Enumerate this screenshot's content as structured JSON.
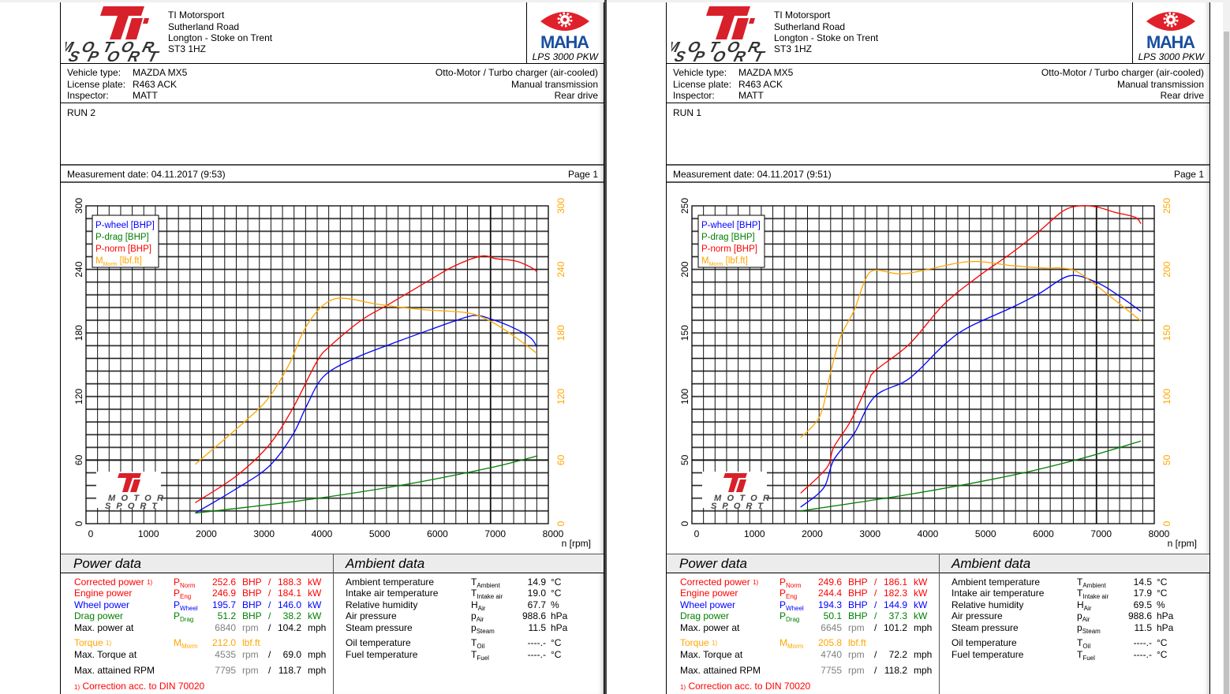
{
  "pages": [
    {
      "company": {
        "name": "TI Motorsport",
        "street": "Sutherland Road",
        "town": "Longton - Stoke on Trent",
        "postcode": "ST3 1HZ",
        "logo_text_1": "MOTOR",
        "logo_text_2": "SPORT"
      },
      "maha": {
        "logo_text": "MAHA",
        "model": "LPS 3000 PKW"
      },
      "vehicle": {
        "rows": [
          {
            "label": "Vehicle type:",
            "value": "MAZDA MX5",
            "right": "Otto-Motor / Turbo charger (air-cooled)"
          },
          {
            "label": "License plate:",
            "value": "R463 ACK",
            "right": "Manual transmission"
          },
          {
            "label": "Inspector:",
            "value": "MATT",
            "right": "Rear drive"
          }
        ]
      },
      "comment": "RUN 2",
      "measurement": "Measurement date: 04.11.2017 (9:53)",
      "page_label": "Page 1",
      "power": {
        "title": "Power data",
        "rows": [
          {
            "label": "Corrected power",
            "note": "1)",
            "sym": "P",
            "sub": "Norm",
            "v1": "252.6",
            "u1": "BHP",
            "sep": "/",
            "v2": "188.3",
            "u2": "kW",
            "cls": "red"
          },
          {
            "label": "Engine power",
            "sym": "P",
            "sub": "Eng",
            "v1": "246.9",
            "u1": "BHP",
            "sep": "/",
            "v2": "184.1",
            "u2": "kW",
            "cls": "red"
          },
          {
            "label": "Wheel power",
            "sym": "P",
            "sub": "Wheel",
            "v1": "195.7",
            "u1": "BHP",
            "sep": "/",
            "v2": "146.0",
            "u2": "kW",
            "cls": "blue"
          },
          {
            "label": "Drag power",
            "sym": "P",
            "sub": "Drag",
            "v1": "51.2",
            "u1": "BHP",
            "sep": "/",
            "v2": "38.2",
            "u2": "kW",
            "cls": "green"
          },
          {
            "label": "Max. power at",
            "v1": "6840",
            "u1": "rpm",
            "sep": "/",
            "v2": "104.2",
            "u2": "mph",
            "cls": "rpm"
          },
          {
            "label": "Torque",
            "note": "1)",
            "sym": "M",
            "sub": "Morm",
            "v1": "212.0",
            "u1": "lbf.ft",
            "cls": "orange"
          },
          {
            "label": "Max. Torque at",
            "v1": "4535",
            "u1": "rpm",
            "sep": "/",
            "v2": "69.0",
            "u2": "mph",
            "cls": "rpm"
          },
          {
            "label": "Max. attained RPM",
            "v1": "7795",
            "u1": "rpm",
            "sep": "/",
            "v2": "118.7",
            "u2": "mph",
            "cls": "rpm"
          }
        ],
        "footnote_mark": "1)",
        "footnote": "Correction acc. to DIN 70020"
      },
      "ambient": {
        "title": "Ambient data",
        "rows": [
          {
            "label": "Ambient temperature",
            "sym": "T",
            "sub": "Ambient",
            "value": "14.9",
            "unit": "°C"
          },
          {
            "label": "Intake air temperature",
            "sym": "T",
            "sub": "Intake air",
            "value": "19.0",
            "unit": "°C"
          },
          {
            "label": "Relative humidity",
            "sym": "H",
            "sub": "Air",
            "value": "67.7",
            "unit": "%"
          },
          {
            "label": "Air pressure",
            "sym": "p",
            "sub": "Air",
            "value": "988.6",
            "unit": "hPa"
          },
          {
            "label": "Steam pressure",
            "sym": "p",
            "sub": "Steam",
            "value": "11.5",
            "unit": "hPa"
          },
          {
            "label": "Oil temperature",
            "sym": "T",
            "sub": "Oil",
            "value": "----.-",
            "unit": "°C"
          },
          {
            "label": "Fuel temperature",
            "sym": "T",
            "sub": "Fuel",
            "value": "----.-",
            "unit": "°C"
          }
        ]
      }
    },
    {
      "company": {
        "name": "TI Motorsport",
        "street": "Sutherland Road",
        "town": "Longton - Stoke on Trent",
        "postcode": "ST3 1HZ",
        "logo_text_1": "MOTOR",
        "logo_text_2": "SPORT"
      },
      "maha": {
        "logo_text": "MAHA",
        "model": "LPS 3000 PKW"
      },
      "vehicle": {
        "rows": [
          {
            "label": "Vehicle type:",
            "value": "MAZDA MX5",
            "right": "Otto-Motor / Turbo charger (air-cooled)"
          },
          {
            "label": "License plate:",
            "value": "R463 ACK",
            "right": "Manual transmission"
          },
          {
            "label": "Inspector:",
            "value": "MATT",
            "right": "Rear drive"
          }
        ]
      },
      "comment": "RUN 1",
      "measurement": "Measurement date: 04.11.2017 (9:51)",
      "page_label": "Page 1",
      "power": {
        "title": "Power data",
        "rows": [
          {
            "label": "Corrected power",
            "note": "1)",
            "sym": "P",
            "sub": "Norm",
            "v1": "249.6",
            "u1": "BHP",
            "sep": "/",
            "v2": "186.1",
            "u2": "kW",
            "cls": "red"
          },
          {
            "label": "Engine power",
            "sym": "P",
            "sub": "Eng",
            "v1": "244.4",
            "u1": "BHP",
            "sep": "/",
            "v2": "182.3",
            "u2": "kW",
            "cls": "red"
          },
          {
            "label": "Wheel power",
            "sym": "P",
            "sub": "Wheel",
            "v1": "194.3",
            "u1": "BHP",
            "sep": "/",
            "v2": "144.9",
            "u2": "kW",
            "cls": "blue"
          },
          {
            "label": "Drag power",
            "sym": "P",
            "sub": "Drag",
            "v1": "50.1",
            "u1": "BHP",
            "sep": "/",
            "v2": "37.3",
            "u2": "kW",
            "cls": "green"
          },
          {
            "label": "Max. power at",
            "v1": "6645",
            "u1": "rpm",
            "sep": "/",
            "v2": "101.2",
            "u2": "mph",
            "cls": "rpm"
          },
          {
            "label": "Torque",
            "note": "1)",
            "sym": "M",
            "sub": "Morm",
            "v1": "205.8",
            "u1": "lbf.ft",
            "cls": "orange"
          },
          {
            "label": "Max. Torque at",
            "v1": "4740",
            "u1": "rpm",
            "sep": "/",
            "v2": "72.2",
            "u2": "mph",
            "cls": "rpm"
          },
          {
            "label": "Max. attained RPM",
            "v1": "7755",
            "u1": "rpm",
            "sep": "/",
            "v2": "118.2",
            "u2": "mph",
            "cls": "rpm"
          }
        ],
        "footnote_mark": "1)",
        "footnote": "Correction acc. to DIN 70020"
      },
      "ambient": {
        "title": "Ambient data",
        "rows": [
          {
            "label": "Ambient temperature",
            "sym": "T",
            "sub": "Ambient",
            "value": "14.5",
            "unit": "°C"
          },
          {
            "label": "Intake air temperature",
            "sym": "T",
            "sub": "Intake air",
            "value": "17.9",
            "unit": "°C"
          },
          {
            "label": "Relative humidity",
            "sym": "H",
            "sub": "Air",
            "value": "69.5",
            "unit": "%"
          },
          {
            "label": "Air pressure",
            "sym": "p",
            "sub": "Air",
            "value": "988.6",
            "unit": "hPa"
          },
          {
            "label": "Steam pressure",
            "sym": "p",
            "sub": "Steam",
            "value": "11.5",
            "unit": "hPa"
          },
          {
            "label": "Oil temperature",
            "sym": "T",
            "sub": "Oil",
            "value": "----.-",
            "unit": "°C"
          },
          {
            "label": "Fuel temperature",
            "sym": "T",
            "sub": "Fuel",
            "value": "----.-",
            "unit": "°C"
          }
        ]
      }
    }
  ],
  "colors": {
    "red": "#ff0000",
    "blue": "#0000ff",
    "green": "#008000",
    "orange": "#ffa500",
    "logo_red": "#d8202a",
    "maha_blue": "#1a4fa0"
  },
  "chart_data": [
    {
      "type": "line",
      "title": "",
      "xlabel": "n [rpm]",
      "xlim": [
        0,
        8000
      ],
      "ylim": [
        0,
        300
      ],
      "ylim_right": [
        0,
        300
      ],
      "grid": true,
      "legend_position": "top-left",
      "x_ticks": [
        "0",
        "1000",
        "2000",
        "3000",
        "4000",
        "5000",
        "6000",
        "7000",
        "8000"
      ],
      "y_ticks": [
        "0",
        "60",
        "120",
        "180",
        "240",
        "300"
      ],
      "y_ticks_right": [
        "0",
        "60",
        "120",
        "180",
        "240",
        "300"
      ],
      "series": [
        {
          "label": "P-wheel [BHP]",
          "color": "#0000ff",
          "points": [
            [
              1890,
              10
            ],
            [
              2572,
              32
            ],
            [
              3164,
              54
            ],
            [
              3579,
              84
            ],
            [
              3816,
              111
            ],
            [
              4113,
              139
            ],
            [
              4646,
              156
            ],
            [
              5298,
              170
            ],
            [
              5950,
              183
            ],
            [
              6364,
              191
            ],
            [
              6720,
              196.5
            ],
            [
              7016,
              193
            ],
            [
              7430,
              184
            ],
            [
              7700,
              175
            ],
            [
              7798,
              167
            ]
          ]
        },
        {
          "label": "P-drag [BHP]",
          "color": "#008000",
          "points": [
            [
              1890,
              10
            ],
            [
              3757,
              22
            ],
            [
              5535,
              37
            ],
            [
              7016,
              53
            ],
            [
              7815,
              64
            ]
          ]
        },
        {
          "label": "P-norm [BHP]",
          "color": "#ff0000",
          "points": [
            [
              1890,
              19.8
            ],
            [
              2600,
              45
            ],
            [
              3164,
              74
            ],
            [
              3579,
              109
            ],
            [
              3994,
              153
            ],
            [
              4231,
              168
            ],
            [
              4764,
              192
            ],
            [
              5238,
              207
            ],
            [
              5950,
              230
            ],
            [
              6364,
              243
            ],
            [
              6838,
              252.5
            ],
            [
              7100,
              250
            ],
            [
              7430,
              248
            ],
            [
              7700,
              242
            ],
            [
              7798,
              238
            ]
          ]
        },
        {
          "label": "M",
          "label_sub": "Morm",
          "label_suffix": " [lbf.ft]",
          "color": "#ffa500",
          "points": [
            [
              1890,
              56
            ],
            [
              2750,
              96.5
            ],
            [
              3164,
              119
            ],
            [
              3520,
              151
            ],
            [
              3757,
              181
            ],
            [
              4024,
              202
            ],
            [
              4290,
              212
            ],
            [
              4586,
              212
            ],
            [
              5060,
              207
            ],
            [
              5831,
              202
            ],
            [
              6601,
              199
            ],
            [
              7016,
              190.6
            ],
            [
              7430,
              176
            ],
            [
              7798,
              161
            ]
          ]
        }
      ]
    },
    {
      "type": "line",
      "title": "",
      "xlabel": "n [rpm]",
      "xlim": [
        0,
        8000
      ],
      "ylim": [
        0,
        250
      ],
      "ylim_right": [
        0,
        250
      ],
      "grid": true,
      "legend_position": "top-left",
      "x_ticks": [
        "0",
        "1000",
        "2000",
        "3000",
        "4000",
        "5000",
        "6000",
        "7000",
        "8000"
      ],
      "y_ticks": [
        "0",
        "50",
        "100",
        "150",
        "200",
        "250"
      ],
      "y_ticks_right": [
        "0",
        "50",
        "100",
        "150",
        "200",
        "250"
      ],
      "series": [
        {
          "label": "P-wheel [BHP]",
          "color": "#0000ff",
          "points": [
            [
              1880,
              13
            ],
            [
              2277,
              28
            ],
            [
              2453,
              50
            ],
            [
              2809,
              71
            ],
            [
              3164,
              100
            ],
            [
              3757,
              114
            ],
            [
              4350,
              140
            ],
            [
              4764,
              154
            ],
            [
              5535,
              170
            ],
            [
              6010,
              181
            ],
            [
              6542,
              195
            ],
            [
              7016,
              189.5
            ],
            [
              7430,
              178
            ],
            [
              7769,
              167
            ]
          ]
        },
        {
          "label": "P-drag [BHP]",
          "color": "#008000",
          "points": [
            [
              1880,
              10
            ],
            [
              3757,
              23
            ],
            [
              5535,
              38
            ],
            [
              6720,
              51
            ],
            [
              7769,
              65
            ]
          ]
        },
        {
          "label": "P-norm [BHP]",
          "color": "#ff0000",
          "points": [
            [
              1880,
              24
            ],
            [
              2335,
              44
            ],
            [
              2453,
              60
            ],
            [
              2750,
              81
            ],
            [
              3046,
              110
            ],
            [
              3164,
              120
            ],
            [
              3757,
              141
            ],
            [
              4350,
              172
            ],
            [
              4942,
              194
            ],
            [
              5535,
              213
            ],
            [
              6010,
              230
            ],
            [
              6424,
              246
            ],
            [
              6720,
              250
            ],
            [
              7016,
              249
            ],
            [
              7313,
              245
            ],
            [
              7668,
              241
            ],
            [
              7769,
              236
            ]
          ]
        },
        {
          "label": "M",
          "label_sub": "Morm",
          "label_suffix": " [lbf.ft]",
          "color": "#ffa500",
          "points": [
            [
              1880,
              67.6
            ],
            [
              2217,
              85
            ],
            [
              2394,
              118
            ],
            [
              2572,
              147
            ],
            [
              2809,
              168
            ],
            [
              2987,
              190.5
            ],
            [
              3164,
              199.4
            ],
            [
              3697,
              196.7
            ],
            [
              4764,
              206
            ],
            [
              5535,
              203
            ],
            [
              6128,
              201
            ],
            [
              6424,
              201
            ],
            [
              6720,
              196.7
            ],
            [
              7313,
              176
            ],
            [
              7769,
              159.5
            ]
          ]
        }
      ]
    }
  ]
}
